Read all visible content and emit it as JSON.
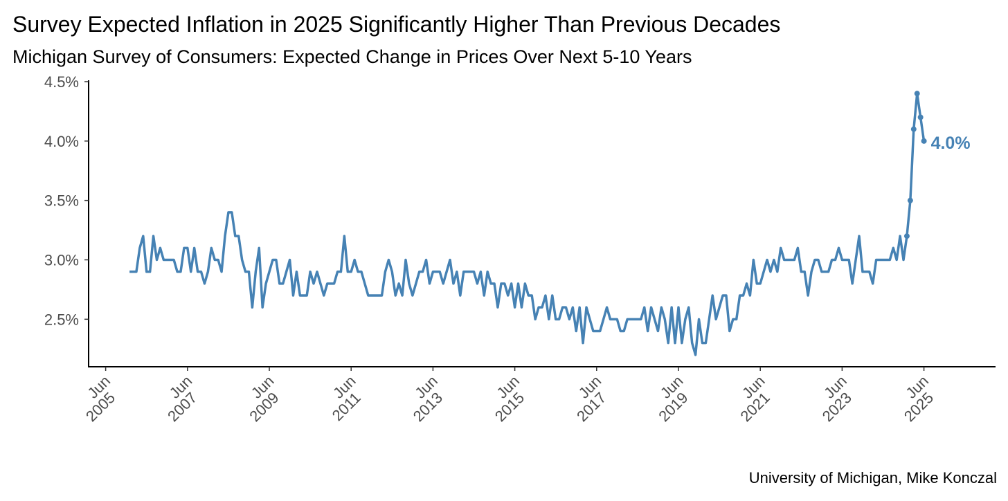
{
  "chart_data": {
    "type": "line",
    "title": "Survey Expected Inflation in 2025 Significantly Higher Than Previous Decades",
    "subtitle": "Michigan Survey of Consumers: Expected Change in Prices Over Next 5-10 Years",
    "source": "University of Michigan, Mike Konczal",
    "xlim": [
      "2005-01",
      "2027-03"
    ],
    "xticks": [
      {
        "value": "2005-06",
        "label": "Jun 2005"
      },
      {
        "value": "2007-06",
        "label": "Jun 2007"
      },
      {
        "value": "2009-06",
        "label": "Jun 2009"
      },
      {
        "value": "2011-06",
        "label": "Jun 2011"
      },
      {
        "value": "2013-06",
        "label": "Jun 2013"
      },
      {
        "value": "2015-06",
        "label": "Jun 2015"
      },
      {
        "value": "2017-06",
        "label": "Jun 2017"
      },
      {
        "value": "2019-06",
        "label": "Jun 2019"
      },
      {
        "value": "2021-06",
        "label": "Jun 2021"
      },
      {
        "value": "2023-06",
        "label": "Jun 2023"
      },
      {
        "value": "2025-06",
        "label": "Jun 2025"
      }
    ],
    "ylim": [
      2.1,
      4.5
    ],
    "yticks": [
      {
        "value": 2.5,
        "label": "2.5%"
      },
      {
        "value": 3.0,
        "label": "3.0%"
      },
      {
        "value": 3.5,
        "label": "3.5%"
      },
      {
        "value": 4.0,
        "label": "4.0%"
      },
      {
        "value": 4.5,
        "label": "4.5%"
      }
    ],
    "grid": false,
    "x": [
      "2006-01",
      "2006-02",
      "2006-03",
      "2006-04",
      "2006-05",
      "2006-06",
      "2006-07",
      "2006-08",
      "2006-09",
      "2006-10",
      "2006-11",
      "2006-12",
      "2007-01",
      "2007-02",
      "2007-03",
      "2007-04",
      "2007-05",
      "2007-06",
      "2007-07",
      "2007-08",
      "2007-09",
      "2007-10",
      "2007-11",
      "2007-12",
      "2008-01",
      "2008-02",
      "2008-03",
      "2008-04",
      "2008-05",
      "2008-06",
      "2008-07",
      "2008-08",
      "2008-09",
      "2008-10",
      "2008-11",
      "2008-12",
      "2009-01",
      "2009-02",
      "2009-03",
      "2009-04",
      "2009-05",
      "2009-06",
      "2009-07",
      "2009-08",
      "2009-09",
      "2009-10",
      "2009-11",
      "2009-12",
      "2010-01",
      "2010-02",
      "2010-03",
      "2010-04",
      "2010-05",
      "2010-06",
      "2010-07",
      "2010-08",
      "2010-09",
      "2010-10",
      "2010-11",
      "2010-12",
      "2011-01",
      "2011-02",
      "2011-03",
      "2011-04",
      "2011-05",
      "2011-06",
      "2011-07",
      "2011-08",
      "2011-09",
      "2011-10",
      "2011-11",
      "2011-12",
      "2012-01",
      "2012-02",
      "2012-03",
      "2012-04",
      "2012-05",
      "2012-06",
      "2012-07",
      "2012-08",
      "2012-09",
      "2012-10",
      "2012-11",
      "2012-12",
      "2013-01",
      "2013-02",
      "2013-03",
      "2013-04",
      "2013-05",
      "2013-06",
      "2013-07",
      "2013-08",
      "2013-09",
      "2013-10",
      "2013-11",
      "2013-12",
      "2014-01",
      "2014-02",
      "2014-03",
      "2014-04",
      "2014-05",
      "2014-06",
      "2014-07",
      "2014-08",
      "2014-09",
      "2014-10",
      "2014-11",
      "2014-12",
      "2015-01",
      "2015-02",
      "2015-03",
      "2015-04",
      "2015-05",
      "2015-06",
      "2015-07",
      "2015-08",
      "2015-09",
      "2015-10",
      "2015-11",
      "2015-12",
      "2016-01",
      "2016-02",
      "2016-03",
      "2016-04",
      "2016-05",
      "2016-06",
      "2016-07",
      "2016-08",
      "2016-09",
      "2016-10",
      "2016-11",
      "2016-12",
      "2017-01",
      "2017-02",
      "2017-03",
      "2017-04",
      "2017-05",
      "2017-06",
      "2017-07",
      "2017-08",
      "2017-09",
      "2017-10",
      "2017-11",
      "2017-12",
      "2018-01",
      "2018-02",
      "2018-03",
      "2018-04",
      "2018-05",
      "2018-06",
      "2018-07",
      "2018-08",
      "2018-09",
      "2018-10",
      "2018-11",
      "2018-12",
      "2019-01",
      "2019-02",
      "2019-03",
      "2019-04",
      "2019-05",
      "2019-06",
      "2019-07",
      "2019-08",
      "2019-09",
      "2019-10",
      "2019-11",
      "2019-12",
      "2020-01",
      "2020-02",
      "2020-03",
      "2020-04",
      "2020-05",
      "2020-06",
      "2020-07",
      "2020-08",
      "2020-09",
      "2020-10",
      "2020-11",
      "2020-12",
      "2021-01",
      "2021-02",
      "2021-03",
      "2021-04",
      "2021-05",
      "2021-06",
      "2021-07",
      "2021-08",
      "2021-09",
      "2021-10",
      "2021-11",
      "2021-12",
      "2022-01",
      "2022-02",
      "2022-03",
      "2022-04",
      "2022-05",
      "2022-06",
      "2022-07",
      "2022-08",
      "2022-09",
      "2022-10",
      "2022-11",
      "2022-12",
      "2023-01",
      "2023-02",
      "2023-03",
      "2023-04",
      "2023-05",
      "2023-06",
      "2023-07",
      "2023-08",
      "2023-09",
      "2023-10",
      "2023-11",
      "2023-12",
      "2024-01",
      "2024-02",
      "2024-03",
      "2024-04",
      "2024-05",
      "2024-06",
      "2024-07",
      "2024-08",
      "2024-09",
      "2024-10",
      "2024-11",
      "2024-12",
      "2025-01",
      "2025-02",
      "2025-03",
      "2025-04",
      "2025-05",
      "2025-06"
    ],
    "series": [
      {
        "name": "Expected Change in Prices Over Next 5-10 Years",
        "color": "#4682b4",
        "values": [
          2.9,
          2.9,
          2.9,
          3.1,
          3.2,
          2.9,
          2.9,
          3.2,
          3.0,
          3.1,
          3.0,
          3.0,
          3.0,
          3.0,
          2.9,
          2.9,
          3.1,
          3.1,
          2.9,
          3.1,
          2.9,
          2.9,
          2.8,
          2.9,
          3.1,
          3.0,
          3.0,
          2.9,
          3.2,
          3.4,
          3.4,
          3.2,
          3.2,
          3.0,
          2.9,
          2.9,
          2.6,
          2.9,
          3.1,
          2.6,
          2.8,
          2.9,
          3.0,
          3.0,
          2.8,
          2.8,
          2.9,
          3.0,
          2.7,
          2.9,
          2.7,
          2.7,
          2.7,
          2.9,
          2.8,
          2.9,
          2.8,
          2.7,
          2.8,
          2.8,
          2.8,
          2.9,
          2.9,
          3.2,
          2.9,
          2.9,
          3.0,
          2.9,
          2.9,
          2.8,
          2.7,
          2.7,
          2.7,
          2.7,
          2.7,
          2.9,
          3.0,
          2.9,
          2.7,
          2.8,
          2.7,
          3.0,
          2.8,
          2.7,
          2.8,
          2.9,
          2.9,
          3.0,
          2.8,
          2.9,
          2.9,
          2.9,
          2.8,
          2.9,
          3.0,
          2.8,
          2.9,
          2.7,
          2.9,
          2.9,
          2.9,
          2.9,
          2.8,
          2.9,
          2.7,
          2.9,
          2.8,
          2.8,
          2.6,
          2.8,
          2.8,
          2.7,
          2.8,
          2.6,
          2.8,
          2.6,
          2.8,
          2.7,
          2.7,
          2.5,
          2.6,
          2.6,
          2.7,
          2.5,
          2.7,
          2.5,
          2.5,
          2.6,
          2.6,
          2.5,
          2.6,
          2.4,
          2.6,
          2.3,
          2.6,
          2.5,
          2.4,
          2.4,
          2.4,
          2.5,
          2.6,
          2.5,
          2.5,
          2.5,
          2.4,
          2.4,
          2.5,
          2.5,
          2.5,
          2.5,
          2.5,
          2.6,
          2.4,
          2.6,
          2.5,
          2.4,
          2.6,
          2.5,
          2.3,
          2.6,
          2.3,
          2.6,
          2.3,
          2.5,
          2.6,
          2.3,
          2.2,
          2.5,
          2.3,
          2.3,
          2.5,
          2.7,
          2.5,
          2.6,
          2.7,
          2.7,
          2.4,
          2.5,
          2.5,
          2.7,
          2.7,
          2.8,
          2.7,
          3.0,
          2.8,
          2.8,
          2.9,
          3.0,
          2.9,
          3.0,
          2.9,
          3.1,
          3.0,
          3.0,
          3.0,
          3.0,
          3.1,
          2.9,
          2.9,
          2.7,
          2.9,
          3.0,
          3.0,
          2.9,
          2.9,
          2.9,
          3.0,
          3.0,
          3.1,
          3.0,
          3.0,
          3.0,
          2.8,
          3.0,
          3.2,
          2.9,
          2.9,
          2.9,
          2.8,
          3.0,
          3.0,
          3.0,
          3.0,
          3.0,
          3.1,
          3.0,
          3.2,
          3.0,
          3.2,
          3.5,
          4.1,
          4.4,
          4.2,
          4.0
        ]
      }
    ],
    "annotations": [
      {
        "text": "4.0%",
        "x": "2025-06",
        "y": 4.0
      }
    ]
  }
}
